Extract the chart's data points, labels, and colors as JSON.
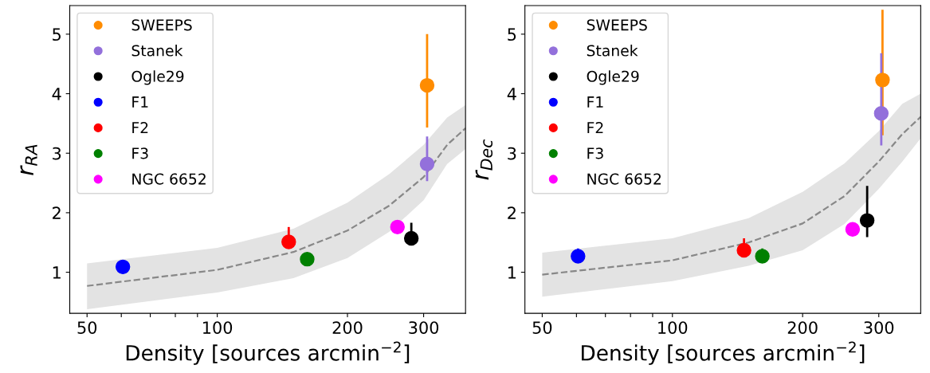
{
  "chart_data": [
    {
      "type": "scatter",
      "xlabel": "Density [sources arcmin$^{−2}$]",
      "ylabel": "r$_{RA}$",
      "log": "x",
      "xlim": [
        45.6,
        375
      ],
      "ylim": [
        0.31,
        5.48
      ],
      "xticks": [
        50,
        {
          "value": 60,
          "label": null
        },
        {
          "value": 70,
          "label": null
        },
        {
          "value": 80,
          "label": null
        },
        {
          "value": 90,
          "label": null
        },
        100,
        200,
        300
      ],
      "yticks": [
        1,
        2,
        3,
        4,
        5
      ],
      "grid": false,
      "legend": "top left",
      "marker": "circle",
      "series": [
        {
          "type": "line",
          "color": "#888888",
          "line_style": "dashed",
          "marker": "none",
          "x": [
            50,
            100,
            150,
            200,
            250,
            300,
            340,
            375
          ],
          "values": [
            0.77,
            1.04,
            1.34,
            1.7,
            2.12,
            2.6,
            3.14,
            3.42
          ],
          "lower": [
            0.38,
            0.66,
            0.9,
            1.24,
            1.68,
            2.21,
            2.82,
            3.07
          ],
          "upper": [
            1.15,
            1.41,
            1.73,
            2.17,
            2.65,
            3.14,
            3.6,
            3.81
          ]
        },
        {
          "name": "SWEEPS",
          "color": "#ff8c00",
          "x": [
            305.6
          ],
          "values": [
            4.14
          ],
          "errors": [
            [
              3.43,
              5.0
            ]
          ]
        },
        {
          "name": "Stanek",
          "color": "#9370db",
          "x": [
            305.6
          ],
          "values": [
            2.82
          ],
          "errors": [
            [
              2.53,
              3.28
            ]
          ]
        },
        {
          "name": "Ogle29",
          "color": "#000000",
          "x": [
            281
          ],
          "values": [
            1.57
          ],
          "errors": [
            [
              1.57,
              1.83
            ]
          ]
        },
        {
          "name": "F1",
          "color": "#0000ff",
          "x": [
            60.5
          ],
          "values": [
            1.09
          ]
        },
        {
          "name": "F2",
          "color": "#ff0000",
          "x": [
            146.3
          ],
          "values": [
            1.51
          ],
          "errors": [
            [
              1.51,
              1.76
            ]
          ]
        },
        {
          "name": "F3",
          "color": "#008000",
          "x": [
            161.4
          ],
          "values": [
            1.22
          ]
        },
        {
          "name": "NGC 6652",
          "color": "#ff00ff",
          "x": [
            261
          ],
          "values": [
            1.76
          ]
        }
      ]
    },
    {
      "type": "scatter",
      "xlabel": "Density [sources arcmin$^{−2}$]",
      "ylabel": "r$_{Dec}$",
      "log": "x",
      "xlim": [
        45.6,
        375
      ],
      "ylim": [
        0.31,
        5.48
      ],
      "xticks": [
        50,
        {
          "value": 60,
          "label": null
        },
        {
          "value": 70,
          "label": null
        },
        {
          "value": 80,
          "label": null
        },
        {
          "value": 90,
          "label": null
        },
        100,
        200,
        300
      ],
      "yticks": [
        1,
        2,
        3,
        4,
        5
      ],
      "grid": false,
      "legend": "top left",
      "marker": "circle",
      "series": [
        {
          "type": "line",
          "color": "#888888",
          "line_style": "dashed",
          "marker": "none",
          "x": [
            50,
            100,
            150,
            200,
            250,
            300,
            340,
            375
          ],
          "values": [
            0.96,
            1.2,
            1.5,
            1.82,
            2.28,
            2.86,
            3.32,
            3.61
          ],
          "lower": [
            0.59,
            0.85,
            1.11,
            1.37,
            1.81,
            2.4,
            2.86,
            3.25
          ],
          "upper": [
            1.33,
            1.57,
            1.91,
            2.35,
            2.83,
            3.37,
            3.83,
            4.0
          ]
        },
        {
          "name": "SWEEPS",
          "color": "#ff8c00",
          "x": [
            306
          ],
          "values": [
            4.23
          ],
          "errors": [
            [
              3.3,
              5.41
            ]
          ]
        },
        {
          "name": "Stanek",
          "color": "#9370db",
          "x": [
            304
          ],
          "values": [
            3.67
          ],
          "errors": [
            [
              3.13,
              4.68
            ]
          ]
        },
        {
          "name": "Ogle29",
          "color": "#000000",
          "x": [
            282
          ],
          "values": [
            1.87
          ],
          "errors": [
            [
              1.59,
              2.45
            ]
          ]
        },
        {
          "name": "F1",
          "color": "#0000ff",
          "x": [
            60.5
          ],
          "values": [
            1.27
          ],
          "errors": [
            [
              1.27,
              1.4
            ]
          ]
        },
        {
          "name": "F2",
          "color": "#ff0000",
          "x": [
            146.4
          ],
          "values": [
            1.37
          ],
          "errors": [
            [
              1.37,
              1.57
            ]
          ]
        },
        {
          "name": "F3",
          "color": "#008000",
          "x": [
            161.4
          ],
          "values": [
            1.27
          ],
          "errors": [
            [
              1.27,
              1.4
            ]
          ]
        },
        {
          "name": "NGC 6652",
          "color": "#ff00ff",
          "x": [
            261
          ],
          "values": [
            1.72
          ]
        }
      ]
    }
  ]
}
